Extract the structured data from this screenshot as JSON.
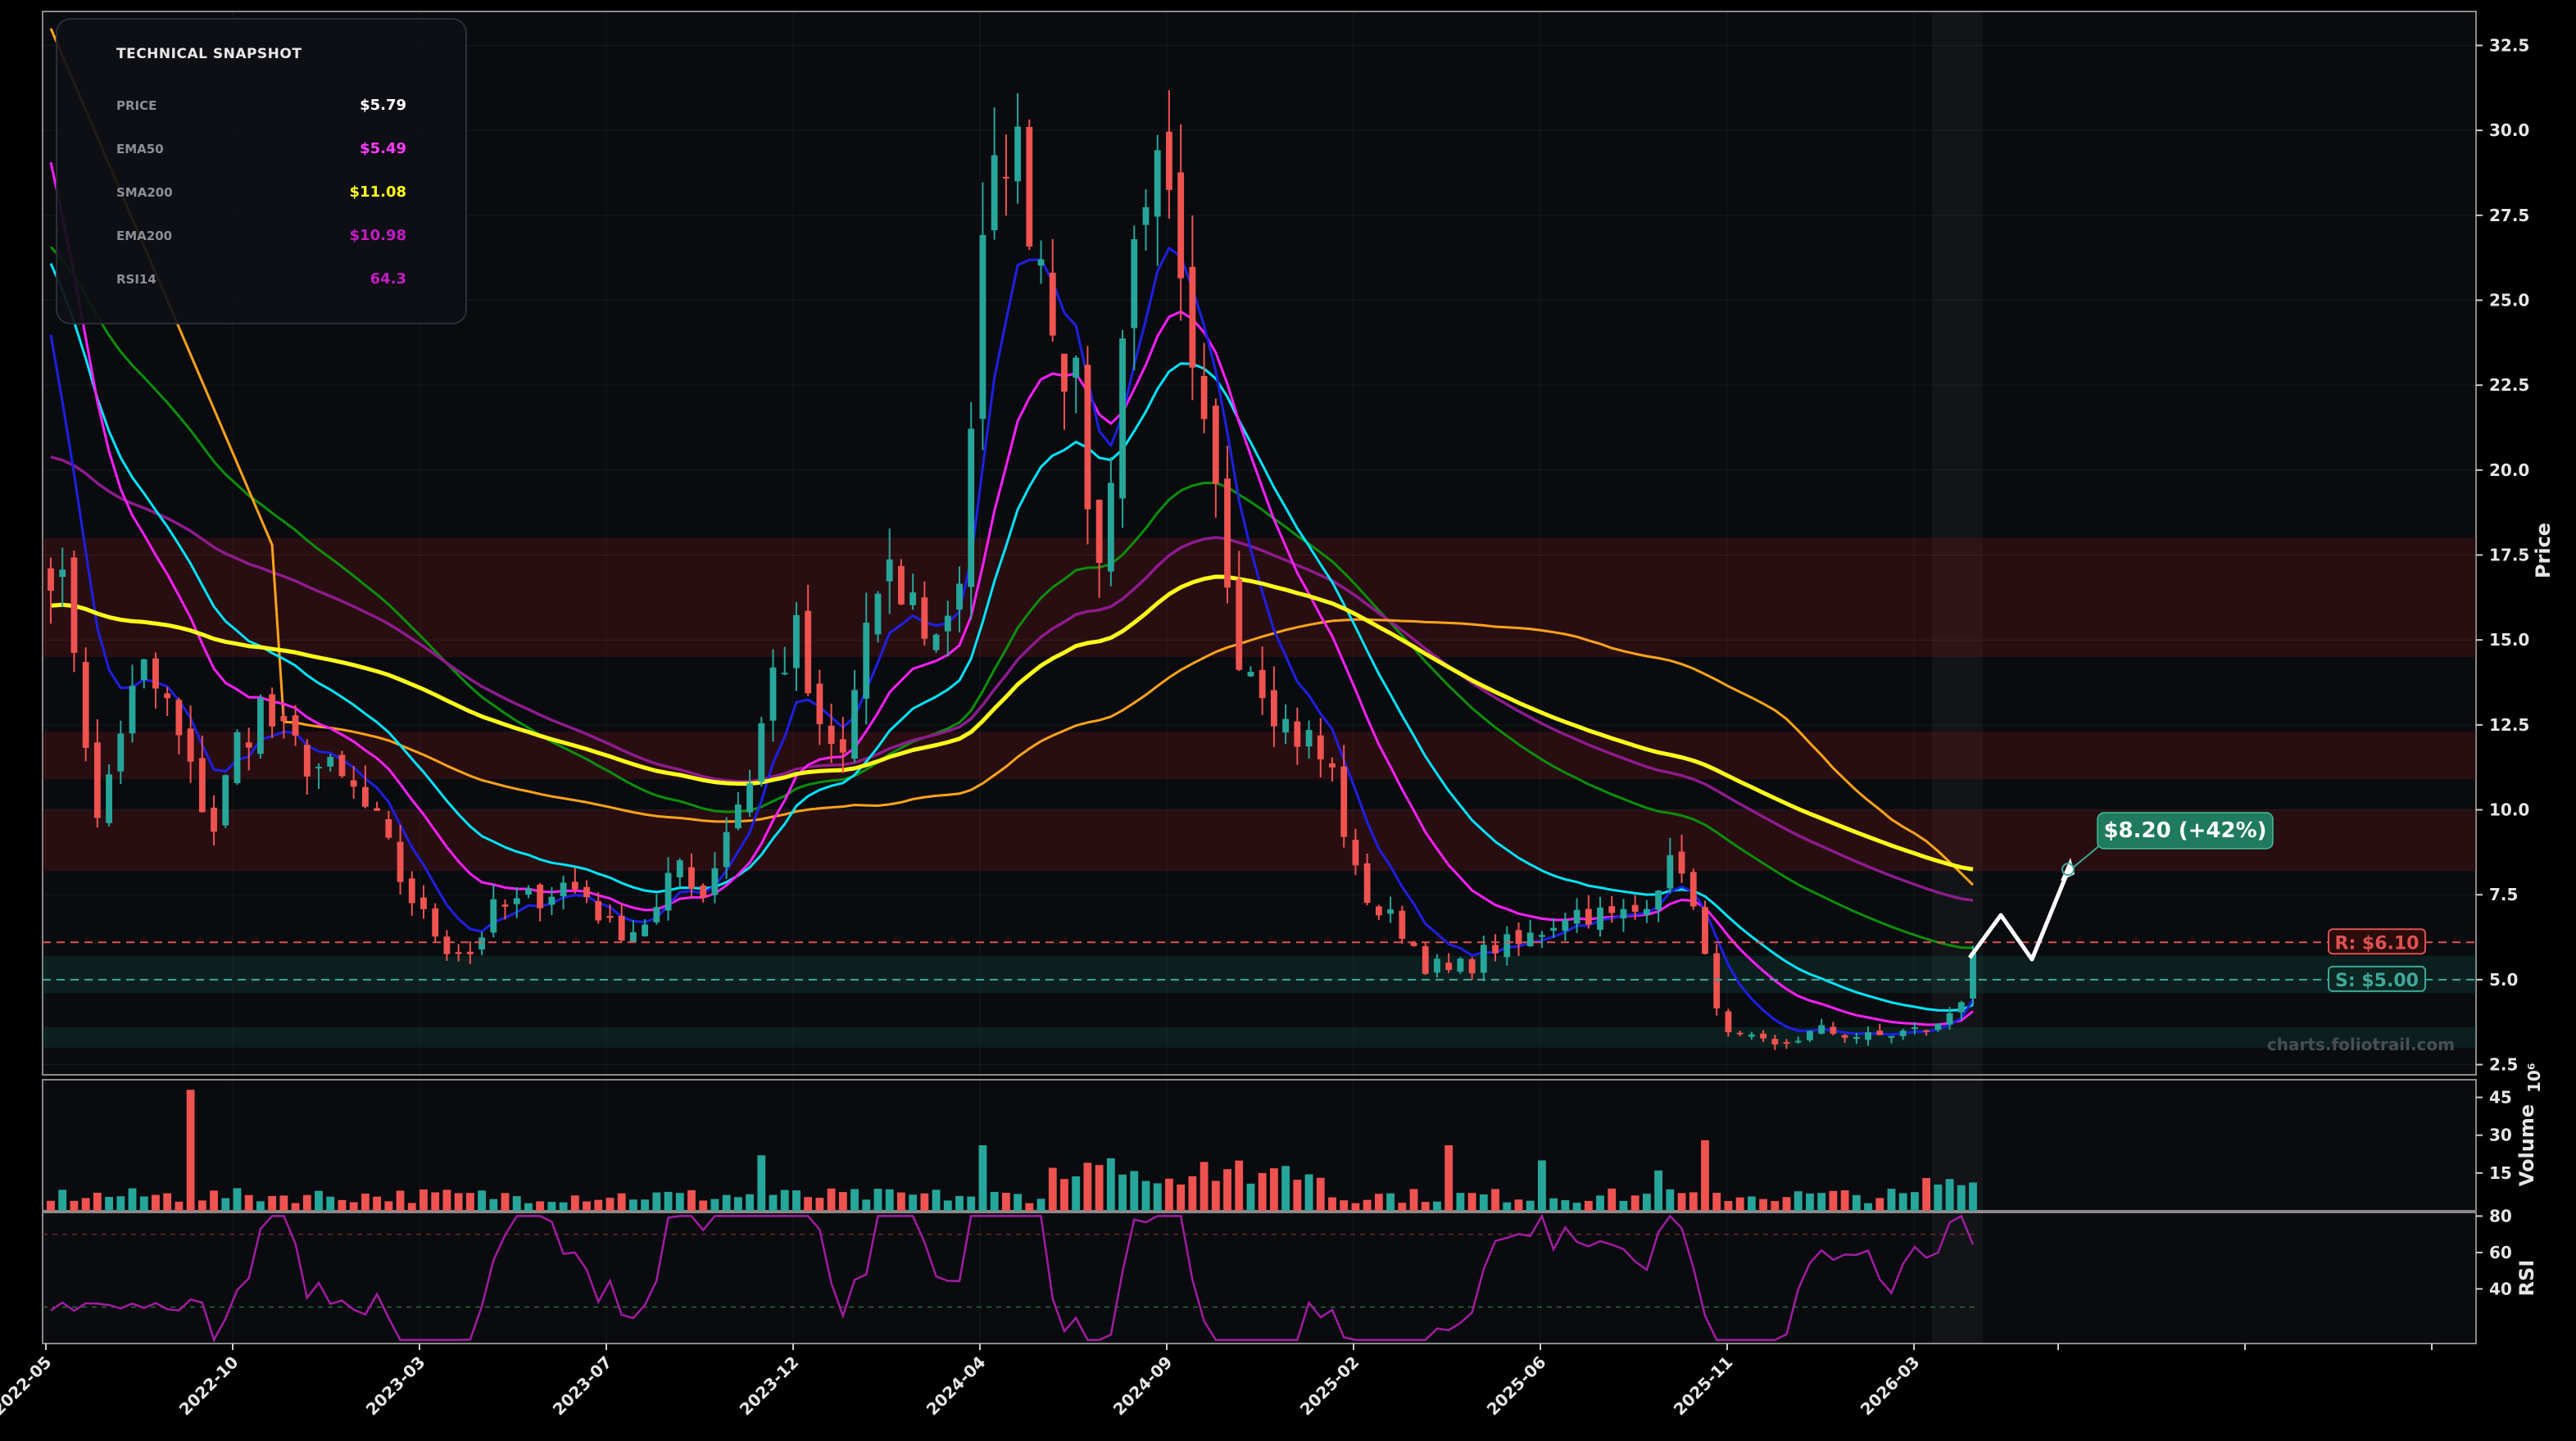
{
  "colors": {
    "background": "#000000",
    "panel_bg": "#0a0b0f",
    "up_candle": "#26a69a",
    "down_candle": "#ef5350",
    "ema20": "#1f1fe6",
    "ema50": "#ff1fff",
    "sma50": "#00e5ff",
    "sma100": "#ffa31a",
    "sma200": "#ffff1a",
    "ema200": "#8e1b8e",
    "ema100": "#0a8f0a",
    "rsi": "#a21ca2",
    "resistance": "#e05252",
    "support": "#3fa89b",
    "projection": "#ffffff",
    "target_badge": "#1f7a5e"
  },
  "snapshot": {
    "title": "TECHNICAL SNAPSHOT",
    "rows": [
      {
        "label": "PRICE",
        "value": "$5.79",
        "color": "#ffffff"
      },
      {
        "label": "EMA50",
        "value": "$5.49",
        "color": "#ff3dff"
      },
      {
        "label": "SMA200",
        "value": "$11.08",
        "color": "#ffff1a"
      },
      {
        "label": "EMA200",
        "value": "$10.98",
        "color": "#c41dc4"
      },
      {
        "label": "RSI14",
        "value": "64.3",
        "color": "#c41dc4"
      }
    ]
  },
  "levels": {
    "resistance_label": "R: $6.10",
    "resistance_value": 6.1,
    "support_label": "S: $5.00",
    "support_value": 5.0
  },
  "target": {
    "label": "$8.20 (+42%)",
    "value": 8.2
  },
  "watermark": "charts.foliotrail.com",
  "chart_data": [
    {
      "type": "candlestick",
      "ylabel": "Price",
      "ylim": [
        2.2,
        33.5
      ],
      "yticks": [
        "2.5",
        "5.0",
        "7.5",
        "10.0",
        "12.5",
        "15.0",
        "17.5",
        "20.0",
        "22.5",
        "25.0",
        "27.5",
        "30.0",
        "32.5"
      ],
      "xtick_labels": [
        "2022-05",
        "2022-10",
        "2023-03",
        "2023-07",
        "2023-12",
        "2024-04",
        "2024-09",
        "2025-02",
        "2025-06",
        "2025-11",
        "2026-03"
      ],
      "zones": [
        {
          "low": 14.5,
          "high": 18.0,
          "kind": "resistance"
        },
        {
          "low": 10.9,
          "high": 12.3,
          "kind": "resistance"
        },
        {
          "low": 8.2,
          "high": 10.0,
          "kind": "resistance"
        },
        {
          "low": 4.6,
          "high": 5.7,
          "kind": "support"
        },
        {
          "low": 3.0,
          "high": 3.6,
          "kind": "support"
        }
      ],
      "closes": [
        [
          0,
          17.5
        ],
        [
          2,
          15.0
        ],
        [
          4,
          9.5
        ],
        [
          6,
          12.5
        ],
        [
          8,
          14.0
        ],
        [
          10,
          13.0
        ],
        [
          12,
          11.0
        ],
        [
          14,
          9.5
        ],
        [
          16,
          12.0
        ],
        [
          18,
          13.0
        ],
        [
          20,
          12.0
        ],
        [
          22,
          11.5
        ],
        [
          24,
          11.0
        ],
        [
          26,
          10.5
        ],
        [
          28,
          9.5
        ],
        [
          30,
          8.0
        ],
        [
          32,
          6.8
        ],
        [
          34,
          6.0
        ],
        [
          36,
          5.8
        ],
        [
          38,
          7.0
        ],
        [
          40,
          7.2
        ],
        [
          42,
          7.5
        ],
        [
          44,
          7.8
        ],
        [
          46,
          7.5
        ],
        [
          48,
          6.5
        ],
        [
          50,
          6.5
        ],
        [
          52,
          7.0
        ],
        [
          54,
          8.5
        ],
        [
          56,
          7.5
        ],
        [
          58,
          9.5
        ],
        [
          60,
          11.0
        ],
        [
          62,
          14.0
        ],
        [
          64,
          15.0
        ],
        [
          66,
          12.0
        ],
        [
          68,
          11.5
        ],
        [
          70,
          15.5
        ],
        [
          72,
          16.5
        ],
        [
          74,
          16.0
        ],
        [
          76,
          15.0
        ],
        [
          78,
          17.0
        ],
        [
          80,
          26.0
        ],
        [
          82,
          30.0
        ],
        [
          84,
          28.0
        ],
        [
          86,
          25.0
        ],
        [
          88,
          22.0
        ],
        [
          90,
          17.0
        ],
        [
          92,
          24.0
        ],
        [
          94,
          29.0
        ],
        [
          96,
          27.0
        ],
        [
          98,
          22.0
        ],
        [
          100,
          19.0
        ],
        [
          102,
          15.0
        ],
        [
          104,
          14.0
        ],
        [
          106,
          12.5
        ],
        [
          108,
          12.0
        ],
        [
          110,
          11.0
        ],
        [
          112,
          8.0
        ],
        [
          114,
          7.0
        ],
        [
          116,
          6.5
        ],
        [
          118,
          5.5
        ],
        [
          120,
          5.2
        ],
        [
          122,
          5.5
        ],
        [
          124,
          6.0
        ],
        [
          126,
          6.0
        ],
        [
          128,
          6.5
        ],
        [
          130,
          7.0
        ],
        [
          132,
          7.0
        ],
        [
          134,
          6.8
        ],
        [
          136,
          7.0
        ],
        [
          138,
          8.0
        ],
        [
          140,
          8.5
        ],
        [
          142,
          5.5
        ],
        [
          144,
          3.3
        ],
        [
          146,
          3.2
        ],
        [
          148,
          3.0
        ],
        [
          150,
          3.3
        ],
        [
          152,
          3.5
        ],
        [
          154,
          3.4
        ],
        [
          156,
          3.3
        ],
        [
          158,
          3.4
        ],
        [
          160,
          3.5
        ],
        [
          162,
          3.6
        ],
        [
          164,
          4.5
        ],
        [
          165,
          5.79
        ]
      ],
      "projection_path": [
        5.79,
        6.9,
        5.6,
        8.2
      ]
    },
    {
      "type": "bar",
      "ylabel": "Volume",
      "unit": "10^6",
      "yticks": [
        "15",
        "30",
        "45"
      ],
      "ylim": [
        0,
        52
      ]
    },
    {
      "type": "line",
      "ylabel": "RSI",
      "yticks": [
        "40",
        "60",
        "80"
      ],
      "ylim": [
        10,
        82
      ],
      "overbought": 70,
      "oversold": 30,
      "last_value": 64.3
    }
  ]
}
